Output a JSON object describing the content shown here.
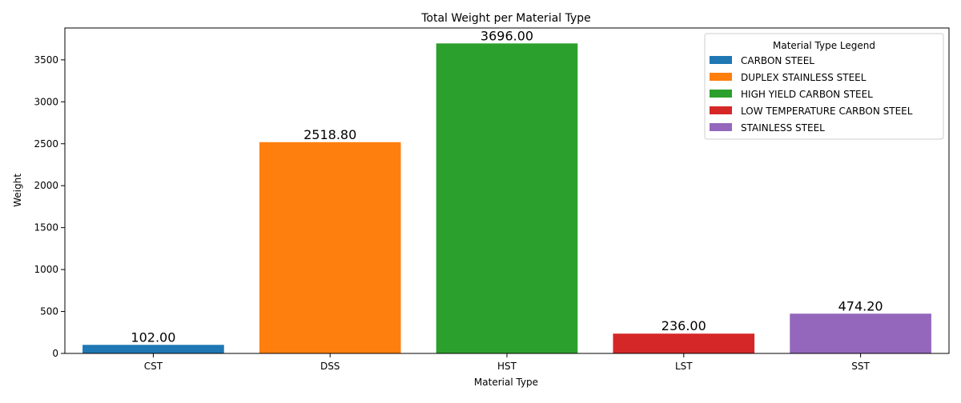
{
  "chart_data": {
    "type": "bar",
    "title": "Total Weight per Material Type",
    "xlabel": "Material Type",
    "ylabel": "Weight",
    "categories": [
      "CST",
      "DSS",
      "HST",
      "LST",
      "SST"
    ],
    "values": [
      102.0,
      2518.8,
      3696.0,
      236.0,
      474.2
    ],
    "value_labels": [
      "102.00",
      "2518.80",
      "3696.00",
      "236.00",
      "474.20"
    ],
    "colors": [
      "#1f77b4",
      "#ff7f0e",
      "#2ca02c",
      "#d62728",
      "#9467bd"
    ],
    "ylim": [
      0,
      3880
    ],
    "yticks": [
      0,
      500,
      1000,
      1500,
      2000,
      2500,
      3000,
      3500
    ],
    "grid": false,
    "legend": {
      "title": "Material Type Legend",
      "position": "top-right",
      "entries": [
        "CARBON STEEL",
        "DUPLEX STAINLESS STEEL",
        "HIGH YIELD CARBON STEEL",
        "LOW TEMPERATURE CARBON STEEL",
        "STAINLESS STEEL"
      ]
    }
  }
}
